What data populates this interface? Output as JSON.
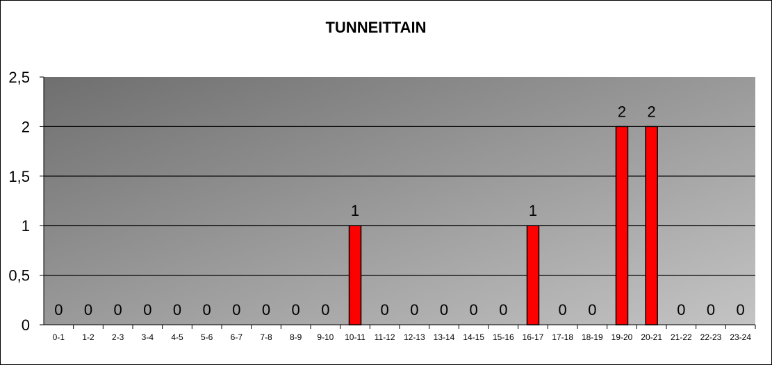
{
  "chart_data": {
    "type": "bar",
    "title": "TUNNEITTAIN",
    "xlabel": "",
    "ylabel": "",
    "ylim": [
      0,
      2.5
    ],
    "yticks": [
      "0",
      "0,5",
      "1",
      "1,5",
      "2",
      "2,5"
    ],
    "categories": [
      "0-1",
      "1-2",
      "2-3",
      "3-4",
      "4-5",
      "5-6",
      "6-7",
      "7-8",
      "8-9",
      "9-10",
      "10-11",
      "11-12",
      "12-13",
      "13-14",
      "14-15",
      "15-16",
      "16-17",
      "17-18",
      "18-19",
      "19-20",
      "20-21",
      "21-22",
      "22-23",
      "23-24"
    ],
    "values": [
      0,
      0,
      0,
      0,
      0,
      0,
      0,
      0,
      0,
      0,
      1,
      0,
      0,
      0,
      0,
      0,
      1,
      0,
      0,
      2,
      2,
      0,
      0,
      0
    ],
    "data_labels": [
      "0",
      "0",
      "0",
      "0",
      "0",
      "0",
      "0",
      "0",
      "0",
      "0",
      "1",
      "0",
      "0",
      "0",
      "0",
      "0",
      "1",
      "0",
      "0",
      "2",
      "2",
      "0",
      "0",
      "0"
    ],
    "grid": true,
    "legend": "none",
    "colors": {
      "bar": "#ff0000",
      "bar_stroke": "#000000",
      "plot_bg_dark": "#6f6f6f",
      "plot_bg_light": "#c4c4c4",
      "grid": "#000000"
    }
  }
}
